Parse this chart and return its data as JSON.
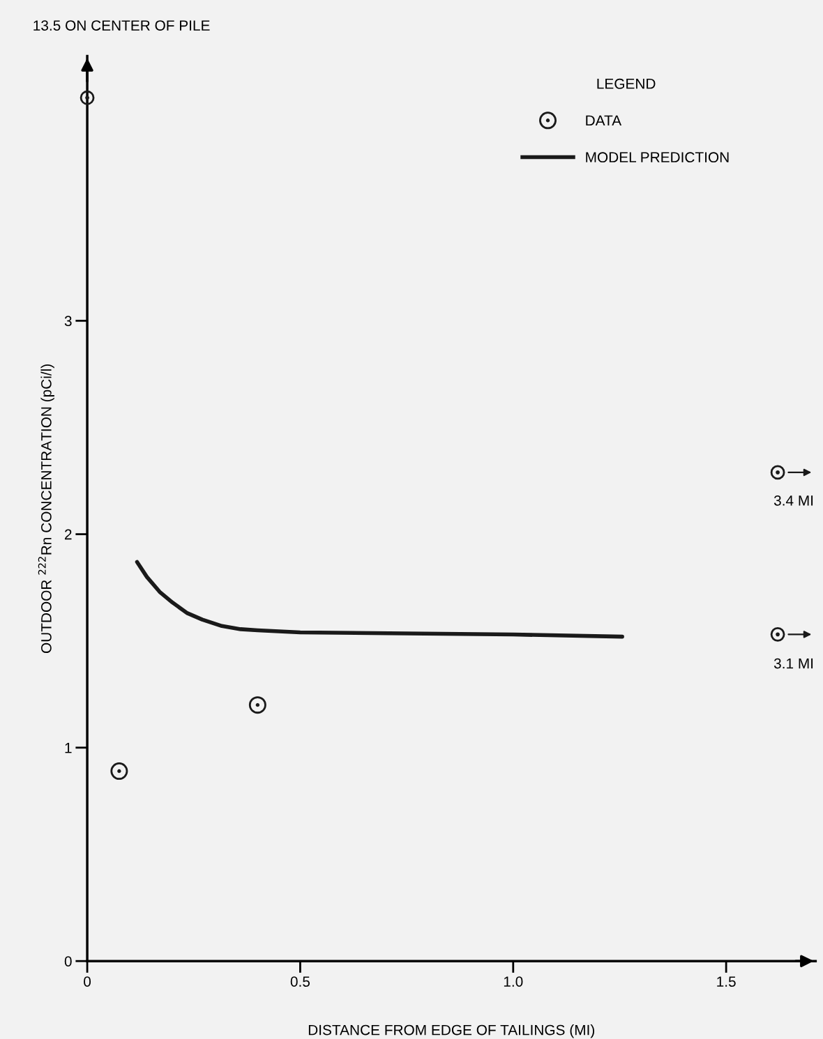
{
  "chart_data": {
    "type": "scatter",
    "xlabel": "DISTANCE FROM EDGE OF TAILINGS (MI)",
    "ylabel": "OUTDOOR $^{222}$Rn CONCENTRATION (pCi/l)",
    "legend_title": "LEGEND",
    "xlim": [
      0,
      1.71
    ],
    "ylim": [
      0,
      4.24
    ],
    "xticks": [
      0,
      0.5,
      {
        "value": 1,
        "label": "1.0"
      },
      1.5
    ],
    "yticks": [
      0,
      1,
      2,
      3
    ],
    "grid": false,
    "legend": "top right",
    "series": [
      {
        "name": "DATA",
        "marker": "circle",
        "color": "#1a1a1a",
        "x": [
          0.075,
          0.4
        ],
        "values": [
          0.89,
          1.2
        ]
      },
      {
        "name": "MODEL PREDICTION",
        "type": "line",
        "marker": "none",
        "color": "#1a1a1a",
        "x": [
          0.117,
          0.14,
          0.17,
          0.2,
          0.235,
          0.27,
          0.316,
          0.36,
          0.4,
          0.5,
          0.75,
          1.0,
          1.256
        ],
        "values": [
          1.87,
          1.8,
          1.73,
          1.68,
          1.63,
          1.6,
          1.57,
          1.555,
          1.55,
          1.54,
          1.535,
          1.53,
          1.52
        ]
      }
    ],
    "annotations": [
      "13.5 ON CENTER OF PILE",
      "3.4 MI",
      "3.1 MI"
    ]
  }
}
